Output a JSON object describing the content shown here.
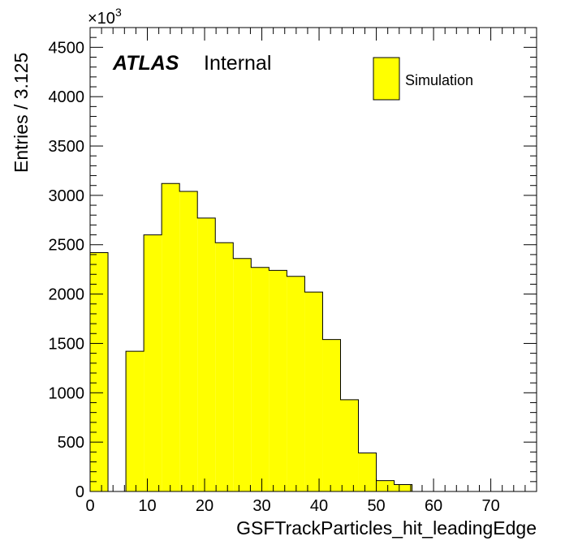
{
  "chart_data": {
    "type": "bar",
    "xlabel": "GSFTrackParticles_hit_leadingEdge",
    "ylabel": "Entries / 3.125",
    "y_multiplier": "×10",
    "y_multiplier_exponent": "3",
    "xlim": [
      0,
      78
    ],
    "ylim": [
      0,
      4700
    ],
    "x_ticks": [
      0,
      10,
      20,
      30,
      40,
      50,
      60,
      70
    ],
    "y_ticks": [
      0,
      500,
      1000,
      1500,
      2000,
      2500,
      3000,
      3500,
      4000,
      4500
    ],
    "bin_width": 3.125,
    "bin_edges_start": 0,
    "values": [
      2420,
      0,
      1420,
      2600,
      3120,
      3040,
      2770,
      2520,
      2360,
      2270,
      2240,
      2180,
      2020,
      1540,
      930,
      390,
      110,
      70,
      0,
      0,
      0,
      0,
      0,
      0
    ],
    "fill_color": "#ffff00",
    "line_color": "#000000",
    "grid": false,
    "legend": {
      "position": "top-right",
      "entries": [
        "Simulation"
      ]
    },
    "annotations": {
      "atlas": "ATLAS",
      "label": "Internal"
    }
  }
}
